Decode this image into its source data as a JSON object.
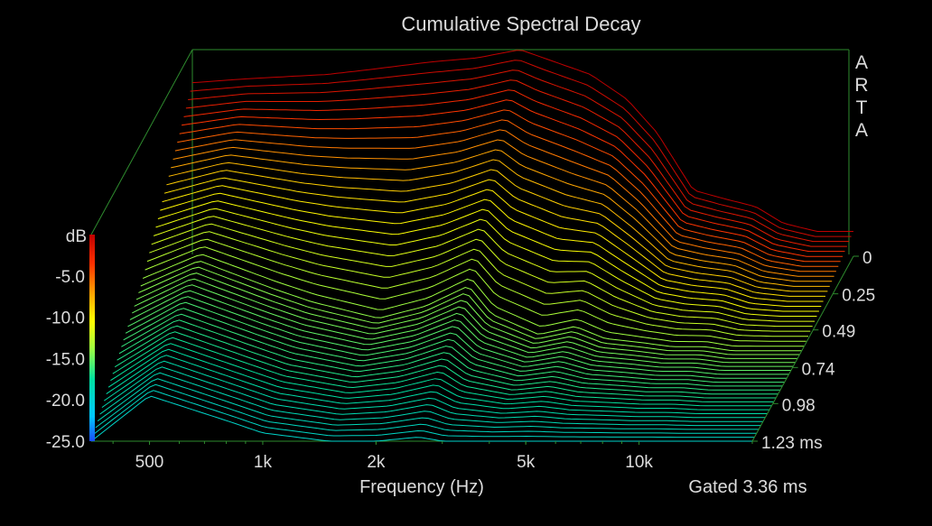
{
  "chart_data": {
    "type": "line",
    "subtype": "cumulative-spectral-decay-waterfall",
    "title": "Cumulative Spectral Decay",
    "xlabel": "Frequency (Hz)",
    "ylabel": "dB",
    "zlabel": "ms",
    "x_scale": "log",
    "xlim": [
      350,
      20000
    ],
    "ylim": [
      -25,
      0
    ],
    "x_ticks": [
      500,
      1000,
      2000,
      5000,
      10000
    ],
    "x_tick_labels": [
      "500",
      "1k",
      "2k",
      "5k",
      "10k"
    ],
    "y_ticks": [
      -5,
      -10,
      -15,
      -20,
      -25
    ],
    "y_tick_labels": [
      "-5.0",
      "-10.0",
      "-15.0",
      "-20.0",
      "-25.0"
    ],
    "z_ticks": [
      0,
      0.25,
      0.49,
      0.74,
      0.98,
      1.23
    ],
    "z_tick_labels": [
      "0",
      "0.25",
      "0.49",
      "0.74",
      "0.98",
      "1.23 ms"
    ],
    "watermark": "ARTA",
    "gated_note": "Gated 3.36 ms",
    "colorbar": [
      "#1a4cff",
      "#00c8ff",
      "#00e0a0",
      "#a0ff40",
      "#ffff00",
      "#ffa000",
      "#ff3000",
      "#c00000"
    ],
    "grid": false,
    "series": [
      {
        "values_x": [
          350,
          500,
          800,
          1000,
          1500,
          2000,
          2600,
          3000,
          4000,
          5000,
          6000,
          7500,
          9000,
          11000,
          13000,
          16000,
          20000
        ],
        "values": [
          -4.0,
          -3.5,
          -3.0,
          -2.5,
          -1.5,
          -1.0,
          0.0,
          -1.0,
          -3.0,
          -6.0,
          -10.0,
          -17.0,
          -18.0,
          -19.0,
          -21.0,
          -22.0,
          -22.0
        ]
      },
      {
        "values_x": [
          350,
          500,
          800,
          1000,
          1500,
          2000,
          2600,
          3000,
          4000,
          5000,
          6000,
          7500,
          9000,
          11000,
          13000,
          16000,
          20000
        ],
        "values": [
          -17.0,
          -14.0,
          -17.5,
          -19.0,
          -21.0,
          -19.5,
          -17.0,
          -20.5,
          -23.0,
          -22.0,
          -23.5,
          -24.0,
          -24.5,
          -24.5,
          -25.0,
          -25.0,
          -25.0
        ]
      },
      {
        "values_x": [
          350,
          500,
          800,
          1000,
          1500,
          2000,
          2600,
          3000,
          4000,
          5000,
          6000,
          7500,
          9000,
          11000,
          13000,
          16000,
          20000
        ],
        "values": [
          -25.0,
          -19.5,
          -22.5,
          -24.0,
          -25.0,
          -25.0,
          -24.5,
          -25.0,
          -25.0,
          -25.0,
          -25.0,
          -25.0,
          -25.0,
          -25.0,
          -25.0,
          -25.0,
          -25.0
        ]
      }
    ]
  }
}
